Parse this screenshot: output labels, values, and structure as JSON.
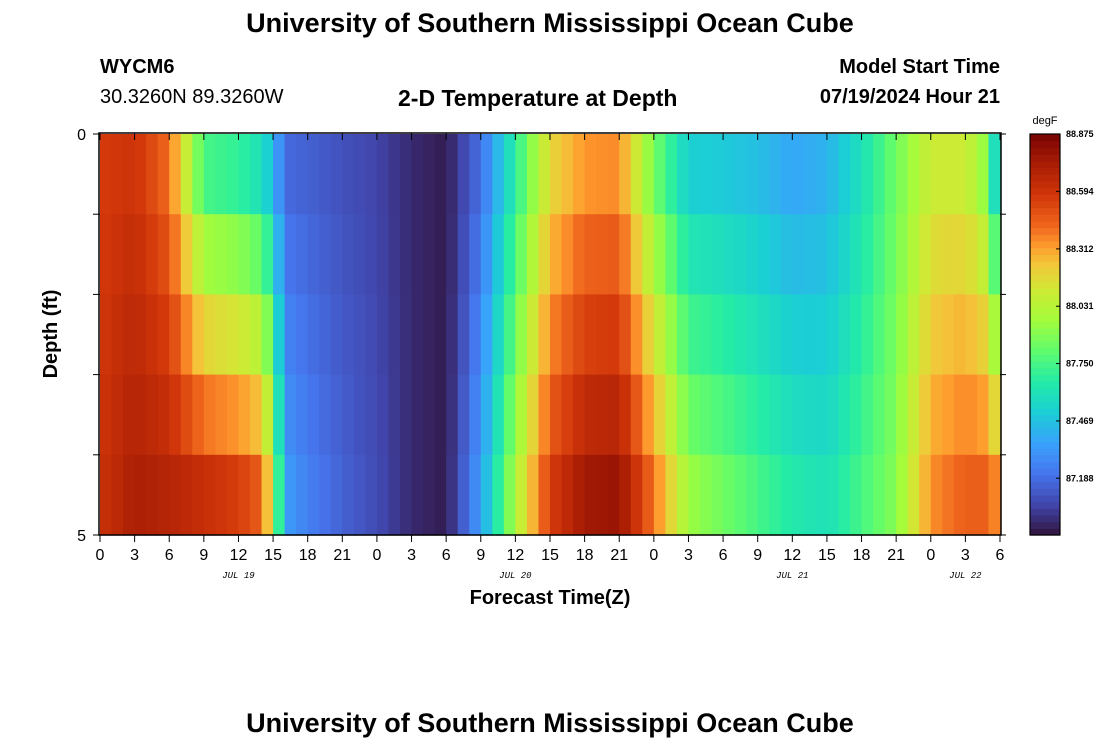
{
  "page": {
    "title_top": "University of Southern Mississippi Ocean Cube",
    "title_bottom": "University of Southern Mississippi Ocean Cube",
    "station_id": "WYCM6",
    "station_coords": "30.3260N  89.3260W",
    "plot_title": "2-D Temperature at Depth",
    "model_start_label": "Model Start Time",
    "model_start_value": "07/19/2024 Hour 21"
  },
  "chart_data": {
    "type": "heatmap",
    "title": "2-D Temperature at Depth",
    "xlabel": "Forecast Time(Z)",
    "ylabel": "Depth (ft)",
    "y_ticks": [
      "0",
      "5"
    ],
    "ylim": [
      0,
      5
    ],
    "x_tick_labels": [
      "0",
      "3",
      "6",
      "9",
      "12",
      "15",
      "18",
      "21",
      "0",
      "3",
      "6",
      "9",
      "12",
      "15",
      "18",
      "21",
      "0",
      "3",
      "6",
      "9",
      "12",
      "15",
      "18",
      "21",
      "0",
      "3",
      "6"
    ],
    "date_labels": [
      "JUL 19",
      "JUL 20",
      "JUL 21",
      "JUL 22"
    ],
    "date_label_hours": [
      12,
      36,
      60,
      75
    ],
    "x_hours_range": [
      0,
      78
    ],
    "colorbar_unit": "degF",
    "colorbar_ticks": [
      "88.875",
      "88.594",
      "88.312",
      "88.031",
      "87.750",
      "87.469",
      "87.188"
    ],
    "colorbar_range": [
      86.91,
      88.875
    ],
    "depth_layers": 5,
    "profile_times_hours": [
      0,
      3,
      6,
      9,
      12,
      14,
      15,
      16,
      18,
      21,
      24,
      27,
      30,
      33,
      36,
      39,
      42,
      45,
      48,
      51,
      54,
      57,
      60,
      63,
      66,
      69,
      72,
      75,
      77,
      78
    ],
    "surface_profile": [
      88.56,
      88.6,
      88.42,
      87.75,
      87.7,
      87.6,
      87.45,
      87.18,
      87.15,
      87.1,
      87.06,
      86.98,
      86.94,
      87.2,
      87.68,
      88.18,
      88.34,
      88.36,
      87.86,
      87.52,
      87.5,
      87.46,
      87.38,
      87.42,
      87.6,
      87.85,
      88.1,
      88.1,
      87.9,
      87.3
    ],
    "bottom_profile": [
      88.6,
      88.72,
      88.68,
      88.62,
      88.55,
      88.45,
      88.05,
      87.35,
      87.25,
      87.15,
      87.08,
      86.98,
      86.94,
      87.35,
      88.0,
      88.55,
      88.75,
      88.78,
      88.4,
      87.95,
      87.85,
      87.75,
      87.65,
      87.6,
      87.75,
      87.9,
      88.35,
      88.45,
      88.45,
      88.3
    ]
  }
}
